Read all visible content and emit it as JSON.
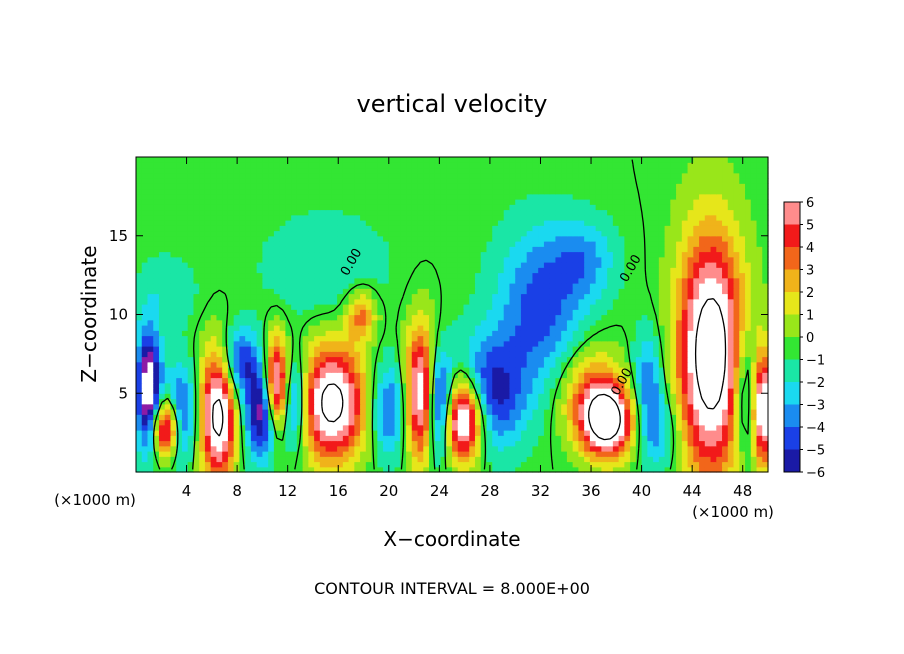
{
  "chart_data": {
    "type": "heatmap",
    "title": "vertical velocity",
    "xlabel": "X−coordinate",
    "ylabel": "Z−coordinate",
    "x_unit_left": "(×1000 m)",
    "x_unit_right": "(×1000 m)",
    "footer": "CONTOUR INTERVAL = 8.000E+00",
    "xlim": [
      0,
      50
    ],
    "ylim": [
      0,
      20
    ],
    "x_ticks": [
      4,
      8,
      12,
      16,
      20,
      24,
      28,
      32,
      36,
      40,
      44,
      48
    ],
    "y_ticks": [
      5,
      10,
      15
    ],
    "colorbar": {
      "ticks": [
        "6",
        "5",
        "4",
        "3",
        "2",
        "1",
        "0",
        "−1",
        "−2",
        "−3",
        "−4",
        "−5",
        "−6"
      ],
      "range": [
        -6,
        6
      ]
    },
    "contour_labels": [
      "0.00",
      "0.00",
      "0.00"
    ],
    "features": [
      {
        "x": 1.0,
        "z": 5.2,
        "w": 1.0,
        "h": 3.8,
        "amp": -8
      },
      {
        "x": 2.3,
        "z": 2.8,
        "w": 1.1,
        "h": 1.8,
        "amp": 8
      },
      {
        "x": 3.6,
        "z": 3.8,
        "w": 1.2,
        "h": 3.0,
        "amp": -4.5
      },
      {
        "x": 6.5,
        "z": 3.6,
        "w": 1.4,
        "h": 4.0,
        "amp": 9
      },
      {
        "x": 8.2,
        "z": 7.0,
        "w": 1.4,
        "h": 2.2,
        "amp": -4.5
      },
      {
        "x": 10.0,
        "z": 3.8,
        "w": 1.4,
        "h": 3.0,
        "amp": -6.5
      },
      {
        "x": 11.1,
        "z": 5.5,
        "w": 0.9,
        "h": 3.0,
        "amp": 9
      },
      {
        "x": 12.6,
        "z": 4.5,
        "w": 1.1,
        "h": 3.0,
        "amp": -5
      },
      {
        "x": 15.5,
        "z": 4.4,
        "w": 2.6,
        "h": 3.6,
        "amp": 9
      },
      {
        "x": 17.8,
        "z": 10.0,
        "w": 1.2,
        "h": 1.6,
        "amp": 4
      },
      {
        "x": 20.0,
        "z": 4.0,
        "w": 1.5,
        "h": 3.0,
        "amp": -4
      },
      {
        "x": 22.5,
        "z": 5.0,
        "w": 1.2,
        "h": 4.2,
        "amp": 8
      },
      {
        "x": 24.0,
        "z": 4.2,
        "w": 1.0,
        "h": 3.2,
        "amp": -6.5
      },
      {
        "x": 25.9,
        "z": 3.4,
        "w": 1.6,
        "h": 2.6,
        "amp": 10
      },
      {
        "x": 28.0,
        "z": 5.0,
        "w": 2.8,
        "h": 3.5,
        "amp": -5
      },
      {
        "x": 32.0,
        "z": 10.5,
        "w": 3.5,
        "h": 5.0,
        "amp": -4
      },
      {
        "x": 35.5,
        "z": 13.5,
        "w": 2.5,
        "h": 2.5,
        "amp": -2.5
      },
      {
        "x": 15.0,
        "z": 13.0,
        "w": 5.0,
        "h": 3.5,
        "amp": -1.5
      },
      {
        "x": 2.5,
        "z": 11.5,
        "w": 2.5,
        "h": 2.5,
        "amp": -1.2
      },
      {
        "x": 37.3,
        "z": 3.2,
        "w": 2.0,
        "h": 2.2,
        "amp": 9
      },
      {
        "x": 36.0,
        "z": 5.0,
        "w": 2.5,
        "h": 3.0,
        "amp": 4
      },
      {
        "x": 40.5,
        "z": 5.5,
        "w": 1.2,
        "h": 3.5,
        "amp": -3.5
      },
      {
        "x": 41.5,
        "z": 2.5,
        "w": 1.5,
        "h": 2.5,
        "amp": -2.5
      },
      {
        "x": 45.5,
        "z": 7.5,
        "w": 2.6,
        "h": 7.5,
        "amp": 10
      },
      {
        "x": 49.6,
        "z": 4.0,
        "w": 0.8,
        "h": 3.5,
        "amp": 8
      },
      {
        "x": 48.2,
        "z": 5.0,
        "w": 1.0,
        "h": 4.0,
        "amp": -4
      }
    ]
  }
}
